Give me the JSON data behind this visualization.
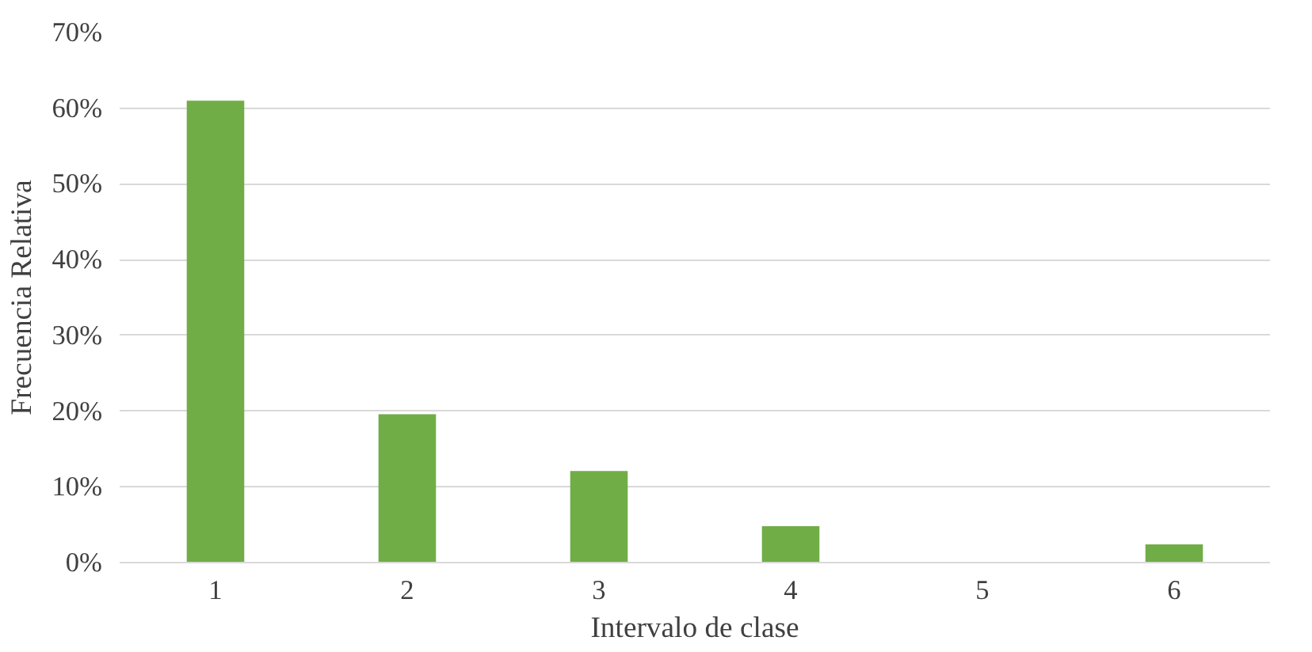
{
  "chart_data": {
    "type": "bar",
    "xlabel": "Intervalo de clase",
    "ylabel": "Frecuencia Relativa",
    "categories": [
      "1",
      "2",
      "3",
      "4",
      "5",
      "6"
    ],
    "values": [
      61,
      19.6,
      12.1,
      4.8,
      0,
      2.4
    ],
    "color": "#70ad47",
    "ylim": [
      0,
      70
    ],
    "yticks": [
      {
        "value": 0,
        "label": "0%"
      },
      {
        "value": 10,
        "label": "10%"
      },
      {
        "value": 20,
        "label": "20%"
      },
      {
        "value": 30,
        "label": "30%"
      },
      {
        "value": 40,
        "label": "40%"
      },
      {
        "value": 50,
        "label": "50%"
      },
      {
        "value": 60,
        "label": "60%"
      },
      {
        "value": 70,
        "label": "70%"
      }
    ],
    "grid": "y"
  }
}
